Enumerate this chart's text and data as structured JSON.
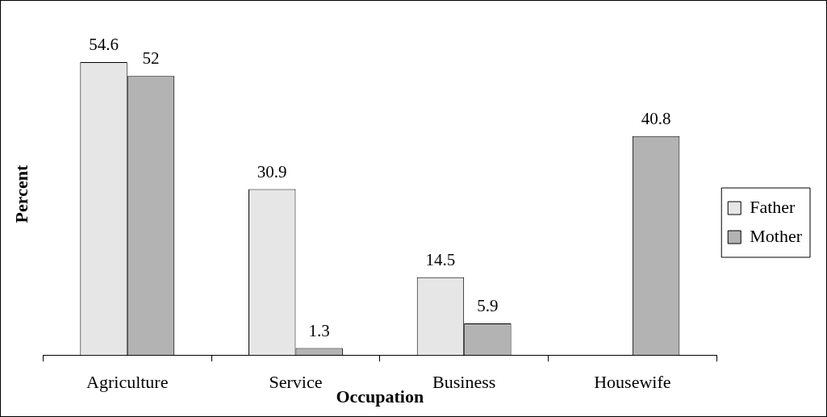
{
  "chart_data": {
    "type": "bar",
    "xlabel": "Occupation",
    "ylabel": "Percent",
    "categories": [
      "Agriculture",
      "Service",
      "Business",
      "Housewife"
    ],
    "series": [
      {
        "name": "Father",
        "color": "#e6e6e6",
        "values": [
          54.6,
          30.9,
          14.5,
          null
        ]
      },
      {
        "name": "Mother",
        "color": "#b3b3b3",
        "values": [
          52,
          1.3,
          5.9,
          40.8
        ]
      }
    ],
    "data_labels": true,
    "legend": "right",
    "grid": false
  }
}
